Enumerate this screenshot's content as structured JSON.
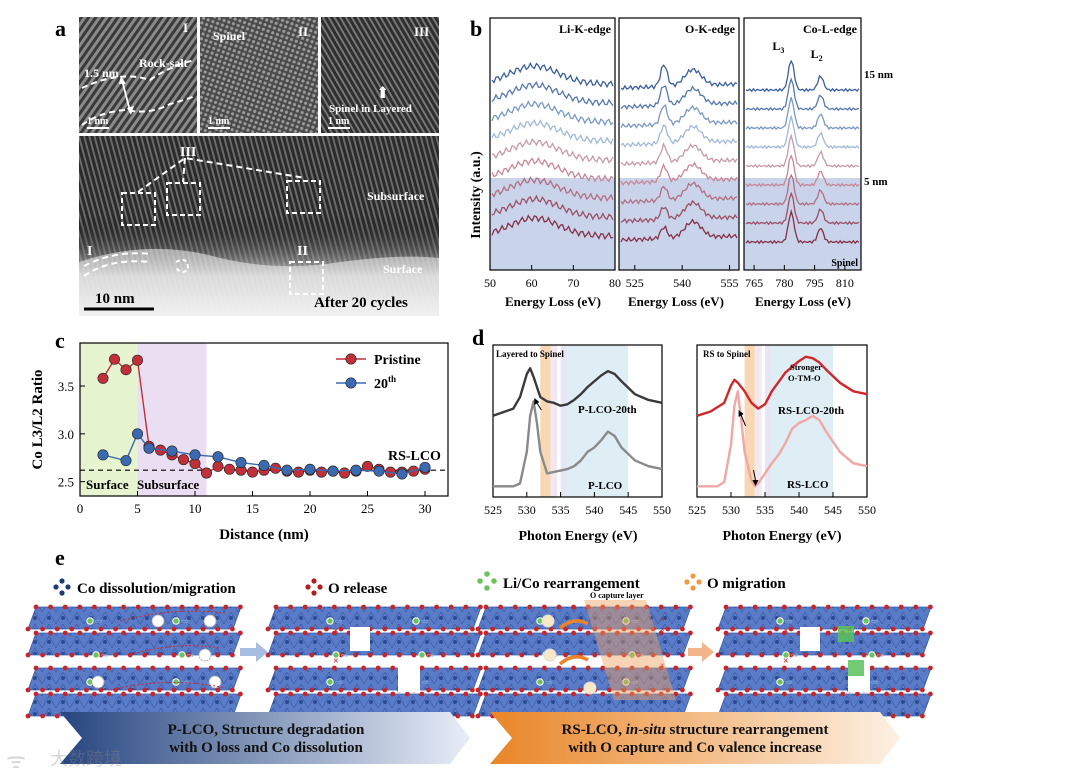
{
  "panel_a": {
    "label": "a",
    "insets": [
      {
        "roman": "I",
        "annotation": "Rock-salt",
        "thickness": "1.5 nm",
        "scale": "1 nm"
      },
      {
        "roman": "II",
        "annotation": "Spinel",
        "scale": "1 nm"
      },
      {
        "roman": "III",
        "annotation": "Spinel in Layered",
        "scale": "1 nm"
      }
    ],
    "main": {
      "region_labels": [
        "III",
        "I",
        "II"
      ],
      "subsurface_label": "Subsurface",
      "surface_label": "Surface",
      "scale": "10 nm",
      "caption": "After 20 cycles"
    }
  },
  "panel_b": {
    "label": "b",
    "ylabel": "Intensity (a.u.)",
    "xlabel": "Energy Loss (eV)",
    "depth_top": "15 nm",
    "depth_mid": "5 nm",
    "spinel_label": "Spinel",
    "subpanels": [
      {
        "title": "Li-K-edge",
        "ticks": [
          "50",
          "60",
          "70",
          "80"
        ]
      },
      {
        "title": "O-K-edge",
        "ticks": [
          "525",
          "540",
          "555"
        ]
      },
      {
        "title": "Co-L-edge",
        "ticks": [
          "765",
          "780",
          "795",
          "810"
        ],
        "peak_labels": [
          "L3",
          "L2"
        ]
      }
    ]
  },
  "chart_data": [
    {
      "type": "line",
      "panel": "c",
      "title": "",
      "xlabel": "Distance (nm)",
      "ylabel": "Co L3/L2 Ratio",
      "xlim": [
        0,
        32
      ],
      "ylim": [
        2.35,
        3.95
      ],
      "x_ticks": [
        "0",
        "5",
        "10",
        "15",
        "20",
        "25",
        "30"
      ],
      "y_ticks": [
        "2.5",
        "3.0",
        "3.5"
      ],
      "series": [
        {
          "name": "Pristine",
          "color": "#c0303a",
          "x": [
            2,
            3,
            4,
            5,
            6,
            7,
            8,
            9,
            10,
            11,
            12,
            13,
            14,
            15,
            16,
            17,
            18,
            19,
            20,
            21,
            22,
            23,
            24,
            25,
            26,
            27,
            28,
            29,
            30
          ],
          "y": [
            3.58,
            3.78,
            3.67,
            3.77,
            2.87,
            2.83,
            2.78,
            2.73,
            2.69,
            2.59,
            2.66,
            2.63,
            2.62,
            2.6,
            2.62,
            2.64,
            2.61,
            2.6,
            2.62,
            2.6,
            2.61,
            2.59,
            2.61,
            2.66,
            2.63,
            2.6,
            2.6,
            2.61,
            2.63
          ]
        },
        {
          "name": "20th",
          "color": "#3c6ab0",
          "x": [
            2,
            4,
            5,
            6,
            8,
            10,
            12,
            14,
            16,
            18,
            20,
            22,
            24,
            26,
            28,
            30
          ],
          "y": [
            2.78,
            2.72,
            3.0,
            2.85,
            2.82,
            2.78,
            2.76,
            2.7,
            2.67,
            2.62,
            2.63,
            2.61,
            2.62,
            2.61,
            2.58,
            2.65
          ]
        }
      ],
      "reference_line": {
        "y": 2.62,
        "label": "RS-LCO"
      },
      "regions": [
        {
          "label": "Surface",
          "x": [
            0,
            5
          ],
          "color": "#e6f5d0"
        },
        {
          "label": "Subsurface",
          "x": [
            5,
            11
          ],
          "color": "#eadff2"
        }
      ],
      "legend": "top-right"
    },
    {
      "type": "line",
      "panel": "d-left",
      "title": "Layered to Spinel",
      "xlabel": "Photon Energy (eV)",
      "ylabel": "",
      "xlim": [
        525,
        550
      ],
      "x_ticks": [
        "525",
        "530",
        "535",
        "540",
        "545",
        "550"
      ],
      "series": [
        {
          "name": "P-LCO-20th",
          "color": "#3a3a3a",
          "x": [
            525,
            528,
            529,
            530,
            530.5,
            531,
            532,
            533,
            534,
            535,
            536,
            537,
            538,
            539,
            540,
            541,
            542,
            543,
            544,
            546,
            548,
            550
          ],
          "y": [
            0.55,
            0.6,
            0.68,
            0.84,
            0.88,
            0.82,
            0.68,
            0.65,
            0.64,
            0.62,
            0.63,
            0.66,
            0.7,
            0.75,
            0.79,
            0.83,
            0.86,
            0.84,
            0.79,
            0.7,
            0.66,
            0.64
          ]
        },
        {
          "name": "P-LCO",
          "color": "#8a8a8a",
          "x": [
            525,
            528,
            529,
            530,
            530.5,
            531,
            531.5,
            532,
            533,
            534,
            535,
            536,
            537,
            538,
            539,
            540,
            541,
            542,
            543,
            544,
            546,
            548,
            550
          ],
          "y": [
            0.06,
            0.06,
            0.08,
            0.3,
            0.55,
            0.65,
            0.5,
            0.3,
            0.15,
            0.16,
            0.17,
            0.18,
            0.2,
            0.24,
            0.3,
            0.33,
            0.38,
            0.44,
            0.41,
            0.33,
            0.24,
            0.2,
            0.18
          ]
        }
      ],
      "bands": [
        [
          532,
          533.5
        ],
        [
          533.5,
          534.5
        ],
        [
          535,
          536
        ],
        [
          536,
          545
        ]
      ]
    },
    {
      "type": "line",
      "panel": "d-right",
      "title": "RS to Spinel",
      "xlabel": "Photon Energy (eV)",
      "ylabel": "",
      "xlim": [
        525,
        550
      ],
      "x_ticks": [
        "525",
        "530",
        "535",
        "540",
        "545",
        "550"
      ],
      "series": [
        {
          "name": "RS-LCO-20th",
          "color": "#d2262b",
          "x": [
            525,
            527,
            529,
            530,
            530.5,
            531,
            532,
            533,
            534,
            535,
            536,
            538,
            540,
            541,
            542,
            543,
            544,
            546,
            548,
            550
          ],
          "y": [
            0.55,
            0.58,
            0.64,
            0.76,
            0.8,
            0.78,
            0.72,
            0.64,
            0.6,
            0.63,
            0.72,
            0.85,
            0.93,
            0.96,
            0.95,
            0.92,
            0.87,
            0.78,
            0.72,
            0.7
          ]
        },
        {
          "name": "RS-LCO",
          "color": "#f0a7a5",
          "x": [
            525,
            528,
            529,
            530,
            530.5,
            531,
            531.5,
            532,
            533,
            533.5,
            534,
            535,
            536,
            537,
            538,
            539,
            540,
            541,
            542,
            543,
            544,
            546,
            548,
            550
          ],
          "y": [
            0.06,
            0.06,
            0.09,
            0.35,
            0.62,
            0.72,
            0.52,
            0.3,
            0.1,
            0.06,
            0.08,
            0.15,
            0.22,
            0.28,
            0.36,
            0.46,
            0.5,
            0.52,
            0.55,
            0.52,
            0.44,
            0.3,
            0.22,
            0.2
          ]
        }
      ],
      "annotation": "Stronger O-TM-O",
      "bands": [
        [
          532,
          533.5
        ],
        [
          533.5,
          534.5
        ],
        [
          535,
          536
        ],
        [
          536,
          545
        ]
      ]
    }
  ],
  "panel_c": {
    "label": "c",
    "surface_label": "Surface",
    "subsurface_label": "Subsurface",
    "ref_label": "RS-LCO"
  },
  "panel_d": {
    "label": "d",
    "left": {
      "title": "Layered to Spinel",
      "curve_top": "P-LCO-20th",
      "curve_bottom": "P-LCO",
      "xlabel": "Photon Energy (eV)"
    },
    "right": {
      "title": "RS to Spinel",
      "annotation_line1": "Stronger",
      "annotation_line2": "O-TM-O",
      "curve_top": "RS-LCO-20th",
      "curve_bottom": "RS-LCO",
      "xlabel": "Photon Energy (eV)"
    }
  },
  "panel_e": {
    "label": "e",
    "legend": [
      {
        "text": "Co dissolution/migration",
        "color": "#1f3a6e"
      },
      {
        "text": "O release",
        "color": "#b21e1e"
      },
      {
        "text": "Li/Co rearrangement",
        "color": "#6cc35c"
      },
      {
        "text": "O migration",
        "color": "#f0993a"
      }
    ],
    "capture_layer_label": "O capture layer",
    "banner_left_line1": "P-LCO, Structure degradation",
    "banner_left_line2": "with O loss and Co dissolution",
    "banner_right_line1_a": "RS-LCO, ",
    "banner_right_line1_b": "in-situ",
    "banner_right_line1_c": " structure rearrangement",
    "banner_right_line2": "with O capture and Co valence increase"
  },
  "watermark": "大数跨境",
  "colors": {
    "pristine": "#c0303a",
    "cycled": "#3c6ab0",
    "slab_blue": "#5c7ec9",
    "arrow_orange": "#e8842c"
  }
}
